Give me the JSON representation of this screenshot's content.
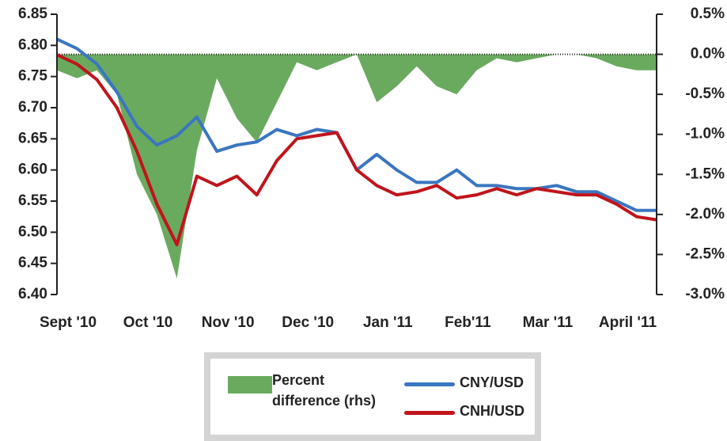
{
  "chart_data": {
    "type": "line",
    "categories": [
      "Sept '10",
      null,
      null,
      null,
      "Oct '10",
      null,
      null,
      null,
      "Nov '10",
      null,
      null,
      null,
      "Dec '10",
      null,
      null,
      null,
      "Jan '11",
      null,
      null,
      null,
      "Feb'11",
      null,
      null,
      null,
      "Mar '11",
      null,
      null,
      null,
      "April '11",
      null,
      null
    ],
    "series": [
      {
        "name": "Percent difference (rhs)",
        "color": "#6aaa5f",
        "type": "area",
        "axis": "y2",
        "values": [
          -0.2,
          -0.3,
          -0.2,
          -0.5,
          -1.5,
          -2.0,
          -2.8,
          -1.2,
          -0.3,
          -0.8,
          -1.1,
          -0.6,
          -0.1,
          -0.2,
          -0.1,
          0.0,
          -0.6,
          -0.4,
          -0.15,
          -0.4,
          -0.5,
          -0.2,
          -0.05,
          -0.1,
          -0.05,
          0.0,
          0.0,
          -0.05,
          -0.15,
          -0.2,
          -0.2
        ]
      },
      {
        "name": "CNY/USD",
        "color": "#3a76c0",
        "type": "line",
        "values": [
          6.81,
          6.795,
          6.77,
          6.725,
          6.67,
          6.64,
          6.655,
          6.685,
          6.63,
          6.64,
          6.645,
          6.665,
          6.655,
          6.665,
          6.66,
          6.6,
          6.625,
          6.6,
          6.58,
          6.58,
          6.6,
          6.575,
          6.575,
          6.57,
          6.57,
          6.575,
          6.565,
          6.565,
          6.55,
          6.535,
          6.535
        ]
      },
      {
        "name": "CNH/USD",
        "color": "#c0141c",
        "type": "line",
        "values": [
          6.785,
          6.77,
          6.745,
          6.7,
          6.63,
          6.545,
          6.48,
          6.59,
          6.575,
          6.59,
          6.56,
          6.615,
          6.65,
          6.655,
          6.66,
          6.6,
          6.575,
          6.56,
          6.565,
          6.575,
          6.555,
          6.56,
          6.57,
          6.56,
          6.57,
          6.565,
          6.56,
          6.56,
          6.545,
          6.525,
          6.52
        ]
      }
    ],
    "ylim": [
      6.4,
      6.85
    ],
    "yticks": [
      {
        "value": 6.4,
        "label": "6.40"
      },
      6.45,
      {
        "value": 6.5,
        "label": "6.50"
      },
      6.55,
      {
        "value": 6.6,
        "label": "6.60"
      },
      6.65,
      {
        "value": 6.7,
        "label": "6.70"
      },
      6.75,
      {
        "value": 6.8,
        "label": "6.80"
      },
      6.85
    ],
    "y2lim": [
      -3.0,
      0.5
    ],
    "y2ticks": [
      {
        "value": -3.0,
        "label": "-3.0%"
      },
      {
        "value": -2.5,
        "label": "-2.5%"
      },
      {
        "value": -2.0,
        "label": "-2.0%"
      },
      {
        "value": -1.5,
        "label": "-1.5%"
      },
      {
        "value": -1.0,
        "label": "-1.0%"
      },
      {
        "value": -0.5,
        "label": "-0.5%"
      },
      {
        "value": 0.0,
        "label": "0.0%"
      },
      {
        "value": 0.5,
        "label": "0.5%"
      }
    ],
    "legend": "bottom"
  }
}
